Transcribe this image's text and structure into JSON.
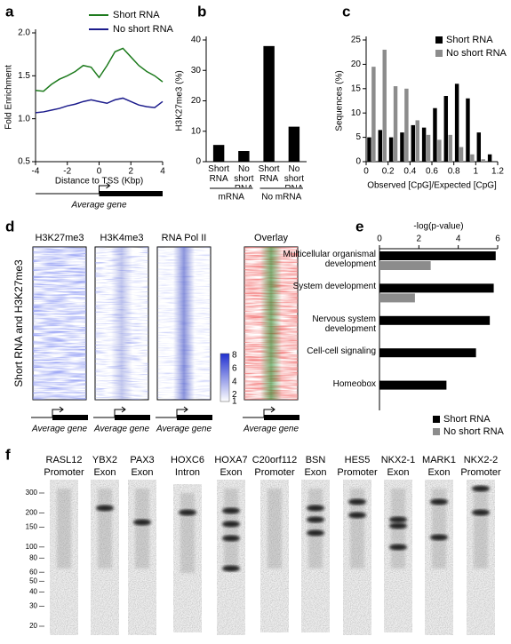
{
  "panel_labels": [
    "a",
    "b",
    "c",
    "d",
    "e",
    "f"
  ],
  "chart_data": [
    {
      "type": "line",
      "x": [
        -4,
        -3.5,
        -3,
        -2.5,
        -2,
        -1.5,
        -1,
        -0.5,
        0,
        0.5,
        1,
        1.5,
        2,
        2.5,
        3,
        3.5,
        4
      ],
      "series": [
        {
          "name": "Short RNA",
          "color": "#1e7b1e",
          "values": [
            1.33,
            1.32,
            1.4,
            1.46,
            1.5,
            1.55,
            1.62,
            1.6,
            1.48,
            1.62,
            1.78,
            1.82,
            1.72,
            1.62,
            1.55,
            1.5,
            1.43
          ]
        },
        {
          "name": "No short RNA",
          "color": "#1c1c8c",
          "values": [
            1.07,
            1.08,
            1.1,
            1.12,
            1.15,
            1.17,
            1.2,
            1.22,
            1.2,
            1.18,
            1.22,
            1.24,
            1.2,
            1.16,
            1.14,
            1.13,
            1.2
          ]
        }
      ],
      "xlim": [
        -4,
        4
      ],
      "ylim": [
        0.5,
        2
      ],
      "xticks": [
        -4,
        -2,
        0,
        2,
        4
      ],
      "yticks": [
        0.5,
        {
          "value": 1,
          "label": "1.0"
        },
        1.5,
        {
          "value": 2,
          "label": "2.0"
        }
      ],
      "xlabel": "Distance to TSS (Kbp)",
      "ylabel": "Fold Enrichment",
      "gene_label": "Average gene"
    },
    {
      "type": "bar",
      "categories": [
        "Short RNA",
        "No short RNA",
        "Short RNA",
        "No short RNA"
      ],
      "groups": [
        "mRNA",
        "mRNA",
        "No mRNA",
        "No mRNA"
      ],
      "values": [
        5.5,
        3.5,
        38,
        11.5
      ],
      "color": "#000000",
      "ylim": [
        0,
        40
      ],
      "yticks": [
        0,
        10,
        20,
        30,
        40
      ],
      "ylabel": "H3K27me3 (%)"
    },
    {
      "type": "bar",
      "x": [
        0.05,
        0.15,
        0.25,
        0.35,
        0.45,
        0.55,
        0.65,
        0.75,
        0.85,
        0.95,
        1.05,
        1.15
      ],
      "series": [
        {
          "name": "Short RNA",
          "color": "#000000",
          "values": [
            5,
            6.5,
            5,
            6,
            7.5,
            7,
            11,
            13.5,
            16,
            13,
            6,
            1.5
          ]
        },
        {
          "name": "No short RNA",
          "color": "#8c8c8c",
          "values": [
            19.5,
            23,
            15.5,
            15,
            8.5,
            5.5,
            4.5,
            5.5,
            3,
            1.5,
            0.5,
            0
          ]
        }
      ],
      "xlim": [
        0,
        1.2
      ],
      "ylim": [
        0,
        25
      ],
      "xticks": [
        0,
        0.2,
        0.4,
        0.6,
        0.8,
        1,
        1.2
      ],
      "yticks": [
        0,
        5,
        10,
        15,
        20,
        25
      ],
      "xlabel": "Observed [CpG]/Expected [CpG]",
      "ylabel": "Sequences (%)"
    },
    {
      "type": "hbar",
      "categories": [
        "Multicellular organismal development",
        "System development",
        "Nervous system development",
        "Cell-cell signaling",
        "Homeobox"
      ],
      "series": [
        {
          "name": "Short RNA",
          "color": "#000000",
          "values": [
            5.9,
            5.8,
            5.6,
            4.9,
            3.4
          ]
        },
        {
          "name": "No short RNA",
          "color": "#8c8c8c",
          "values": [
            2.6,
            1.8,
            null,
            null,
            null
          ]
        }
      ],
      "xlim": [
        0,
        6
      ],
      "xticks": [
        0,
        2,
        4,
        6
      ],
      "xlabel": "-log(p-value)"
    }
  ],
  "heatmap": {
    "titles": [
      "H3K27me3",
      "H3K4me3",
      "RNA Pol II",
      "Overlay"
    ],
    "ylabel": "Short RNA and H3K27me3",
    "colorbar_ticks": [
      8,
      6,
      4,
      2,
      1
    ],
    "gene_label": "Average gene"
  },
  "gel": {
    "lanes": [
      {
        "gene": "RASL12",
        "region": "Promoter"
      },
      {
        "gene": "YBX2",
        "region": "Exon"
      },
      {
        "gene": "PAX3",
        "region": "Exon"
      },
      {
        "gene": "HOXC6",
        "region": "Intron"
      },
      {
        "gene": "HOXA7",
        "region": "Exon"
      },
      {
        "gene": "C20orf112",
        "region": "Promoter"
      },
      {
        "gene": "BSN",
        "region": "Exon"
      },
      {
        "gene": "HES5",
        "region": "Promoter"
      },
      {
        "gene": "NKX2-1",
        "region": "Exon"
      },
      {
        "gene": "MARK1",
        "region": "Exon"
      },
      {
        "gene": "NKX2-2",
        "region": "Promoter"
      }
    ],
    "ladder": [
      300,
      200,
      150,
      100,
      80,
      60,
      50,
      40,
      30,
      20
    ]
  }
}
